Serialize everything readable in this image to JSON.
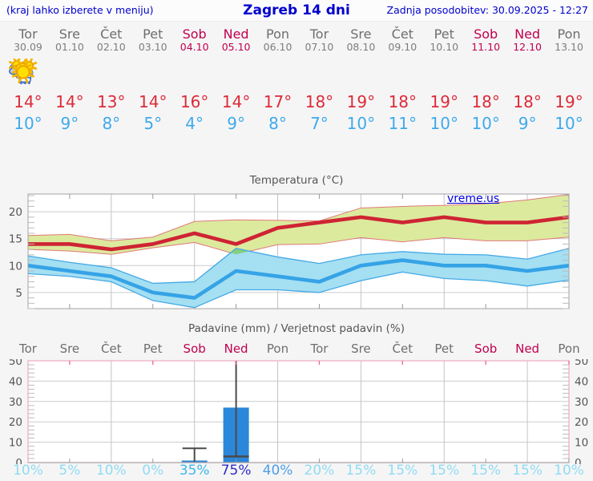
{
  "header": {
    "left_note": "(kraj lahko izberete v meniju)",
    "title": "Zagreb 14 dni",
    "last_update": "Zadnja posodobitev: 30.09.2025 - 12:27"
  },
  "watermark": "vreme.us",
  "colors": {
    "link_blue": "#0000cc",
    "weekday_gray": "#6e6e6e",
    "weekend_red": "#c0004e",
    "high_temp_red": "#dc2b38",
    "low_temp_blue": "#3daaea",
    "max_band_fill": "#dcea9e",
    "max_band_edge": "#e07878",
    "min_band_fill": "#a5dff2",
    "min_band_edge": "#44a9e6",
    "band_overlap": "#86cf7e",
    "precip_bar_blue": "#2b87da",
    "whisker_gray": "#4a4a4a",
    "precip_frame_pink": "#f0a8c4",
    "prob_low": "#8edcf2",
    "prob_mid": "#3cb9ec",
    "prob_mid2": "#4b9fe8",
    "prob_high": "#2b2cc8"
  },
  "days": [
    {
      "name": "Tor",
      "date": "30.09",
      "weekend": false,
      "icon": "cloudy",
      "high": "14°",
      "low": "10°",
      "precip_prob": "10%",
      "prob_level": "low"
    },
    {
      "name": "Sre",
      "date": "01.10",
      "weekend": false,
      "icon": "sun-cloud",
      "high": "14°",
      "low": "9°",
      "precip_prob": "5%",
      "prob_level": "low"
    },
    {
      "name": "Čet",
      "date": "02.10",
      "weekend": false,
      "icon": "sun-cloud",
      "high": "13°",
      "low": "8°",
      "precip_prob": "10%",
      "prob_level": "low"
    },
    {
      "name": "Pet",
      "date": "03.10",
      "weekend": false,
      "icon": "sun",
      "high": "14°",
      "low": "5°",
      "precip_prob": "0%",
      "prob_level": "low"
    },
    {
      "name": "Sob",
      "date": "04.10",
      "weekend": true,
      "icon": "rain",
      "high": "16°",
      "low": "4°",
      "precip_prob": "35%",
      "prob_level": "mid"
    },
    {
      "name": "Ned",
      "date": "05.10",
      "weekend": true,
      "icon": "sun-rain",
      "high": "14°",
      "low": "9°",
      "precip_prob": "75%",
      "prob_level": "high"
    },
    {
      "name": "Pon",
      "date": "06.10",
      "weekend": false,
      "icon": "sun-cloud",
      "high": "17°",
      "low": "8°",
      "precip_prob": "40%",
      "prob_level": "mid2"
    },
    {
      "name": "Tor",
      "date": "07.10",
      "weekend": false,
      "icon": "sun-small-cloud",
      "high": "18°",
      "low": "7°",
      "precip_prob": "20%",
      "prob_level": "low"
    },
    {
      "name": "Sre",
      "date": "08.10",
      "weekend": false,
      "icon": "sun",
      "high": "19°",
      "low": "10°",
      "precip_prob": "15%",
      "prob_level": "low"
    },
    {
      "name": "Čet",
      "date": "09.10",
      "weekend": false,
      "icon": "sun",
      "high": "18°",
      "low": "11°",
      "precip_prob": "15%",
      "prob_level": "low"
    },
    {
      "name": "Pet",
      "date": "10.10",
      "weekend": false,
      "icon": "sun",
      "high": "19°",
      "low": "10°",
      "precip_prob": "15%",
      "prob_level": "low"
    },
    {
      "name": "Sob",
      "date": "11.10",
      "weekend": true,
      "icon": "sun",
      "high": "18°",
      "low": "10°",
      "precip_prob": "15%",
      "prob_level": "low"
    },
    {
      "name": "Ned",
      "date": "12.10",
      "weekend": true,
      "icon": "sun",
      "high": "18°",
      "low": "9°",
      "precip_prob": "15%",
      "prob_level": "low"
    },
    {
      "name": "Pon",
      "date": "13.10",
      "weekend": false,
      "icon": "sun",
      "high": "19°",
      "low": "10°",
      "precip_prob": "10%",
      "prob_level": "low"
    }
  ],
  "chart_data": [
    {
      "type": "line",
      "title": "Temperatura (°C)",
      "categories": [
        "Tor 30.09",
        "Sre 01.10",
        "Čet 02.10",
        "Pet 03.10",
        "Sob 04.10",
        "Ned 05.10",
        "Pon 06.10",
        "Tor 07.10",
        "Sre 08.10",
        "Čet 09.10",
        "Pet 10.10",
        "Sob 11.10",
        "Ned 12.10",
        "Pon 13.10"
      ],
      "ylim": [
        2,
        23.3
      ],
      "yticks": [
        5,
        10,
        15,
        20
      ],
      "grid": true,
      "series": [
        {
          "name": "max_temp",
          "values": [
            14,
            14,
            13,
            14,
            16,
            14,
            17,
            18,
            19,
            18,
            19,
            18,
            18,
            19
          ]
        },
        {
          "name": "max_temp_band_upper",
          "values": [
            15.6,
            15.8,
            14.6,
            15.3,
            18.2,
            18.5,
            18.4,
            18.3,
            20.7,
            21.0,
            21.2,
            21.5,
            22.2,
            23.2
          ]
        },
        {
          "name": "max_temp_band_lower",
          "values": [
            13.0,
            12.7,
            12.1,
            13.3,
            14.3,
            12.1,
            13.9,
            14.0,
            15.2,
            14.4,
            15.2,
            14.6,
            14.6,
            15.3
          ]
        },
        {
          "name": "min_temp",
          "values": [
            10,
            9,
            8,
            5,
            4,
            9,
            8,
            7,
            10,
            11,
            10,
            10,
            9,
            10
          ]
        },
        {
          "name": "min_temp_band_upper",
          "values": [
            11.8,
            10.6,
            9.6,
            6.7,
            7.0,
            13.2,
            11.6,
            10.4,
            12.0,
            12.6,
            12.1,
            12.0,
            11.2,
            13.2
          ]
        },
        {
          "name": "min_temp_band_lower",
          "values": [
            8.5,
            8.0,
            7.0,
            3.5,
            2.2,
            5.5,
            5.5,
            5.0,
            7.2,
            8.8,
            7.6,
            7.2,
            6.2,
            7.3
          ]
        }
      ]
    },
    {
      "type": "bar",
      "title": "Padavine (mm) / Verjetnost padavin (%)",
      "categories": [
        "Tor",
        "Sre",
        "Čet",
        "Pet",
        "Sob",
        "Ned",
        "Pon",
        "Tor",
        "Sre",
        "Čet",
        "Pet",
        "Sob",
        "Ned",
        "Pon"
      ],
      "values": [
        0,
        0,
        0,
        0,
        1,
        27,
        0,
        0,
        0,
        0,
        0,
        0,
        0,
        0
      ],
      "whiskers": [
        {
          "day_index": 4,
          "low": 0,
          "high": 7
        },
        {
          "day_index": 5,
          "low": 3,
          "high": 52
        }
      ],
      "probabilities_percent": [
        10,
        5,
        10,
        0,
        35,
        75,
        40,
        20,
        15,
        15,
        15,
        15,
        15,
        10
      ],
      "ylim": [
        0,
        50
      ],
      "yticks": [
        0,
        10,
        20,
        30,
        40,
        50
      ]
    }
  ]
}
